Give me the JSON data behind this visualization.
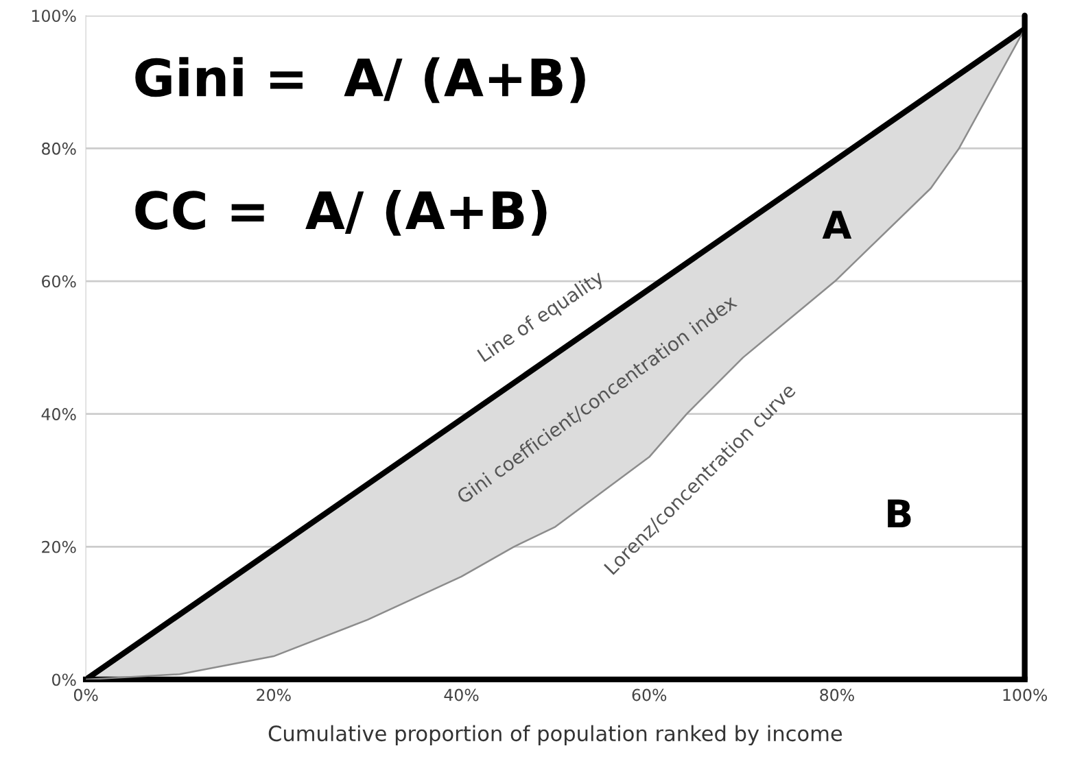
{
  "chart_data": {
    "type": "line",
    "xlabel": "Cumulative proportion of population ranked by income",
    "xlim": [
      0,
      100
    ],
    "ylim": [
      0,
      100
    ],
    "xticks": [
      {
        "value": 0,
        "label": "0%"
      },
      {
        "value": 20,
        "label": "20%"
      },
      {
        "value": 40,
        "label": "40%"
      },
      {
        "value": 60,
        "label": "60%"
      },
      {
        "value": 80,
        "label": "80%"
      },
      {
        "value": 100,
        "label": "100%"
      }
    ],
    "yticks": [
      {
        "value": 0,
        "label": "0%"
      },
      {
        "value": 20,
        "label": "20%"
      },
      {
        "value": 40,
        "label": "40%"
      },
      {
        "value": 60,
        "label": "60%"
      },
      {
        "value": 80,
        "label": "80%"
      },
      {
        "value": 100,
        "label": "100%"
      }
    ],
    "grid": "y",
    "legend": false,
    "marker": "none",
    "line_style": "solid",
    "series": [
      {
        "color": "#000000",
        "x": [
          0,
          100
        ],
        "values": [
          0,
          98
        ]
      },
      {
        "color": "#8c8c8c",
        "x": [
          0,
          10,
          20,
          30,
          40,
          45.6,
          50,
          60,
          64,
          70,
          79.8,
          90,
          93,
          100
        ],
        "values": [
          0,
          0.8,
          3.5,
          9,
          15.5,
          20,
          23,
          33.5,
          40,
          48.5,
          60,
          74,
          80,
          98
        ],
        "lower": [
          0,
          0.8,
          3.5,
          9,
          15.5,
          20,
          23,
          33.5,
          40,
          48.5,
          60,
          74,
          80,
          98
        ],
        "upper": [
          0,
          9.8,
          19.6,
          29.4,
          39.2,
          44.7,
          49,
          58.8,
          62.7,
          68.6,
          78.2,
          88.2,
          91.1,
          98
        ]
      }
    ],
    "ref_lines": [
      {
        "axis": "x",
        "value": 100,
        "color": "#000000",
        "line_style": "solid"
      }
    ],
    "annotations": [
      "Gini =  A/ (A+B)",
      "CC =  A/ (A+B)",
      "Line of equality",
      "Gini coefficient/concentration index",
      "Lorenz/concentration curve",
      "A",
      "B"
    ]
  }
}
